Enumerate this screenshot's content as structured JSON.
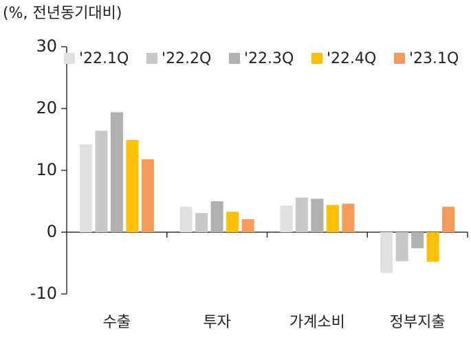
{
  "chart_data": {
    "type": "bar",
    "y_label": "(%, 전년동기대비)",
    "categories": [
      "수출",
      "투자",
      "가계소비",
      "정부지출"
    ],
    "series": [
      {
        "name": "'22.1Q",
        "color": "#e0e0e0",
        "values": [
          14.2,
          4.1,
          4.3,
          -6.6
        ]
      },
      {
        "name": "'22.2Q",
        "color": "#c8c8c8",
        "values": [
          16.4,
          3.1,
          5.6,
          -4.7
        ]
      },
      {
        "name": "'22.3Q",
        "color": "#b0b0b0",
        "values": [
          19.4,
          5.0,
          5.4,
          -2.6
        ]
      },
      {
        "name": "'22.4Q",
        "color": "#ffc000",
        "values": [
          14.9,
          3.3,
          4.4,
          -4.8
        ]
      },
      {
        "name": "'23.1Q",
        "color": "#f59a58",
        "values": [
          11.8,
          2.1,
          4.6,
          4.1
        ]
      }
    ],
    "ylim": [
      -10,
      30
    ],
    "yticks": [
      30,
      20,
      10,
      0,
      -10
    ],
    "legend": "top",
    "grid": false
  }
}
